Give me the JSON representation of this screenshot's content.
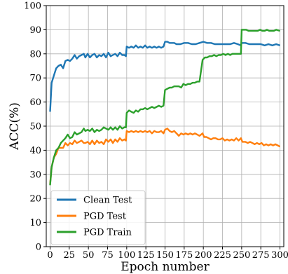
{
  "chart_data": {
    "type": "line",
    "xlabel": "Epoch number",
    "ylabel": "ACC(%)",
    "xlim": [
      -5,
      305
    ],
    "ylim": [
      0,
      100
    ],
    "xticks": [
      0,
      25,
      50,
      75,
      100,
      125,
      150,
      175,
      200,
      225,
      250,
      275,
      300
    ],
    "yticks": [
      0,
      10,
      20,
      30,
      40,
      50,
      60,
      70,
      80,
      90,
      100
    ],
    "grid": true,
    "legend_position": "lower-left",
    "series": [
      {
        "name": "Clean Test",
        "color": "#1f77b4",
        "points": [
          [
            0,
            56
          ],
          [
            2,
            68
          ],
          [
            5,
            71
          ],
          [
            8,
            74
          ],
          [
            11,
            75
          ],
          [
            14,
            75.5
          ],
          [
            17,
            74
          ],
          [
            20,
            77
          ],
          [
            23,
            77.5
          ],
          [
            26,
            77
          ],
          [
            29,
            78
          ],
          [
            32,
            79.5
          ],
          [
            35,
            78
          ],
          [
            38,
            79
          ],
          [
            41,
            79.5
          ],
          [
            44,
            80
          ],
          [
            46,
            78.5
          ],
          [
            49,
            80
          ],
          [
            52,
            78.5
          ],
          [
            55,
            79.5
          ],
          [
            58,
            80
          ],
          [
            61,
            78.5
          ],
          [
            64,
            79.5
          ],
          [
            67,
            79
          ],
          [
            70,
            80
          ],
          [
            73,
            78.5
          ],
          [
            76,
            80.5
          ],
          [
            79,
            79
          ],
          [
            82,
            79.5
          ],
          [
            85,
            80
          ],
          [
            88,
            79
          ],
          [
            91,
            80.5
          ],
          [
            94,
            79.5
          ],
          [
            97,
            79.5
          ],
          [
            99,
            79
          ],
          [
            100,
            83
          ],
          [
            103,
            82.5
          ],
          [
            106,
            83
          ],
          [
            109,
            82.5
          ],
          [
            112,
            83.5
          ],
          [
            115,
            82.5
          ],
          [
            118,
            83
          ],
          [
            121,
            82.5
          ],
          [
            124,
            83.5
          ],
          [
            127,
            82.5
          ],
          [
            130,
            83
          ],
          [
            133,
            82.5
          ],
          [
            136,
            83
          ],
          [
            139,
            82.5
          ],
          [
            142,
            83
          ],
          [
            145,
            82.5
          ],
          [
            148,
            83
          ],
          [
            150,
            85
          ],
          [
            153,
            85
          ],
          [
            156,
            84.5
          ],
          [
            159,
            84.5
          ],
          [
            162,
            84.5
          ],
          [
            165,
            84
          ],
          [
            170,
            84
          ],
          [
            175,
            84.5
          ],
          [
            180,
            84.5
          ],
          [
            185,
            84
          ],
          [
            190,
            84
          ],
          [
            195,
            84.5
          ],
          [
            200,
            85
          ],
          [
            205,
            84.5
          ],
          [
            210,
            84.5
          ],
          [
            215,
            84
          ],
          [
            220,
            84
          ],
          [
            225,
            84
          ],
          [
            230,
            84
          ],
          [
            235,
            84
          ],
          [
            240,
            84.5
          ],
          [
            245,
            84
          ],
          [
            249,
            83.5
          ],
          [
            250,
            84.5
          ],
          [
            255,
            84.5
          ],
          [
            260,
            84
          ],
          [
            265,
            84
          ],
          [
            270,
            84
          ],
          [
            275,
            84
          ],
          [
            280,
            83.5
          ],
          [
            285,
            84
          ],
          [
            290,
            83.5
          ],
          [
            295,
            84
          ],
          [
            300,
            83.5
          ]
        ]
      },
      {
        "name": "PGD Test",
        "color": "#ff7f0e",
        "points": [
          [
            0,
            26
          ],
          [
            2,
            33
          ],
          [
            5,
            37
          ],
          [
            8,
            38.5
          ],
          [
            11,
            41
          ],
          [
            14,
            41
          ],
          [
            17,
            41
          ],
          [
            20,
            43
          ],
          [
            23,
            42
          ],
          [
            26,
            43
          ],
          [
            29,
            42.5
          ],
          [
            32,
            44
          ],
          [
            35,
            43
          ],
          [
            38,
            43.5
          ],
          [
            41,
            44
          ],
          [
            44,
            43
          ],
          [
            46,
            43
          ],
          [
            49,
            43.5
          ],
          [
            52,
            42.5
          ],
          [
            55,
            44
          ],
          [
            58,
            42.5
          ],
          [
            61,
            44
          ],
          [
            64,
            43
          ],
          [
            67,
            43.5
          ],
          [
            70,
            42.5
          ],
          [
            73,
            44.5
          ],
          [
            76,
            43.5
          ],
          [
            79,
            44.5
          ],
          [
            82,
            43
          ],
          [
            85,
            44.5
          ],
          [
            88,
            43.5
          ],
          [
            91,
            45
          ],
          [
            94,
            44
          ],
          [
            97,
            44.5
          ],
          [
            99,
            44
          ],
          [
            100,
            48
          ],
          [
            103,
            47.5
          ],
          [
            106,
            48
          ],
          [
            109,
            47.5
          ],
          [
            112,
            48
          ],
          [
            115,
            47.5
          ],
          [
            118,
            48
          ],
          [
            121,
            47.5
          ],
          [
            124,
            48
          ],
          [
            127,
            47.5
          ],
          [
            130,
            48
          ],
          [
            133,
            47
          ],
          [
            136,
            48
          ],
          [
            139,
            47.5
          ],
          [
            142,
            47.5
          ],
          [
            145,
            48
          ],
          [
            148,
            47
          ],
          [
            150,
            48.5
          ],
          [
            153,
            49
          ],
          [
            156,
            48
          ],
          [
            159,
            47.5
          ],
          [
            162,
            48
          ],
          [
            165,
            47
          ],
          [
            168,
            46
          ],
          [
            171,
            47
          ],
          [
            174,
            46.5
          ],
          [
            177,
            47
          ],
          [
            180,
            46.5
          ],
          [
            183,
            47
          ],
          [
            186,
            46.5
          ],
          [
            189,
            47
          ],
          [
            192,
            46.5
          ],
          [
            195,
            46
          ],
          [
            199,
            47
          ],
          [
            201,
            45.5
          ],
          [
            204,
            45.5
          ],
          [
            207,
            45
          ],
          [
            210,
            44.5
          ],
          [
            213,
            45
          ],
          [
            216,
            45
          ],
          [
            219,
            44.5
          ],
          [
            222,
            44.5
          ],
          [
            225,
            45
          ],
          [
            228,
            44
          ],
          [
            231,
            44.5
          ],
          [
            234,
            44
          ],
          [
            237,
            44.5
          ],
          [
            240,
            44
          ],
          [
            243,
            45
          ],
          [
            246,
            44
          ],
          [
            249,
            45
          ],
          [
            251,
            43.5
          ],
          [
            255,
            43.5
          ],
          [
            258,
            43
          ],
          [
            261,
            43.5
          ],
          [
            264,
            43
          ],
          [
            267,
            42.5
          ],
          [
            270,
            43
          ],
          [
            273,
            42.5
          ],
          [
            276,
            43
          ],
          [
            279,
            42
          ],
          [
            282,
            42.5
          ],
          [
            285,
            42
          ],
          [
            288,
            42.5
          ],
          [
            291,
            42
          ],
          [
            294,
            42.5
          ],
          [
            297,
            42
          ],
          [
            300,
            41.5
          ]
        ]
      },
      {
        "name": "PGD Train",
        "color": "#2ca02c",
        "points": [
          [
            0,
            25.5
          ],
          [
            2,
            33
          ],
          [
            5,
            37
          ],
          [
            8,
            40
          ],
          [
            11,
            41
          ],
          [
            14,
            43
          ],
          [
            17,
            44
          ],
          [
            20,
            45
          ],
          [
            23,
            46.5
          ],
          [
            26,
            45
          ],
          [
            29,
            45.5
          ],
          [
            32,
            47.5
          ],
          [
            35,
            46.5
          ],
          [
            38,
            47
          ],
          [
            41,
            47.5
          ],
          [
            44,
            49
          ],
          [
            46,
            48
          ],
          [
            49,
            48.5
          ],
          [
            52,
            48
          ],
          [
            55,
            49
          ],
          [
            58,
            47.5
          ],
          [
            61,
            48.5
          ],
          [
            64,
            48
          ],
          [
            67,
            48.5
          ],
          [
            70,
            49.5
          ],
          [
            73,
            49
          ],
          [
            76,
            48.5
          ],
          [
            79,
            49.5
          ],
          [
            82,
            48.5
          ],
          [
            85,
            49.5
          ],
          [
            88,
            48.5
          ],
          [
            91,
            50
          ],
          [
            94,
            49
          ],
          [
            97,
            49.5
          ],
          [
            99,
            49.5
          ],
          [
            100,
            55.5
          ],
          [
            103,
            56.5
          ],
          [
            106,
            56
          ],
          [
            109,
            55.5
          ],
          [
            112,
            56.5
          ],
          [
            115,
            56
          ],
          [
            118,
            57
          ],
          [
            121,
            57
          ],
          [
            124,
            57.5
          ],
          [
            127,
            57
          ],
          [
            130,
            57.5
          ],
          [
            133,
            58
          ],
          [
            136,
            57.5
          ],
          [
            139,
            58
          ],
          [
            142,
            58.5
          ],
          [
            145,
            58
          ],
          [
            148,
            58.5
          ],
          [
            150,
            65
          ],
          [
            153,
            65.5
          ],
          [
            156,
            66
          ],
          [
            159,
            66
          ],
          [
            162,
            66.5
          ],
          [
            165,
            66.5
          ],
          [
            168,
            66.5
          ],
          [
            171,
            66
          ],
          [
            174,
            67.5
          ],
          [
            177,
            67
          ],
          [
            180,
            67.5
          ],
          [
            183,
            67.5
          ],
          [
            186,
            68
          ],
          [
            189,
            68
          ],
          [
            192,
            68.5
          ],
          [
            195,
            68.5
          ],
          [
            199,
            77.5
          ],
          [
            202,
            78.5
          ],
          [
            205,
            78.5
          ],
          [
            208,
            79
          ],
          [
            211,
            79
          ],
          [
            214,
            79.5
          ],
          [
            217,
            79
          ],
          [
            220,
            79.5
          ],
          [
            223,
            79.5
          ],
          [
            226,
            80
          ],
          [
            229,
            79.5
          ],
          [
            232,
            80
          ],
          [
            235,
            79.5
          ],
          [
            238,
            80
          ],
          [
            241,
            80
          ],
          [
            244,
            80
          ],
          [
            247,
            80
          ],
          [
            249,
            80
          ],
          [
            250,
            90
          ],
          [
            253,
            90
          ],
          [
            256,
            90
          ],
          [
            259,
            89.5
          ],
          [
            262,
            89.5
          ],
          [
            265,
            89.5
          ],
          [
            268,
            89.5
          ],
          [
            271,
            89.5
          ],
          [
            274,
            90
          ],
          [
            277,
            89.5
          ],
          [
            280,
            89.5
          ],
          [
            283,
            90
          ],
          [
            286,
            89.5
          ],
          [
            289,
            89.5
          ],
          [
            292,
            89.5
          ],
          [
            295,
            90
          ],
          [
            300,
            89.5
          ]
        ]
      }
    ]
  }
}
